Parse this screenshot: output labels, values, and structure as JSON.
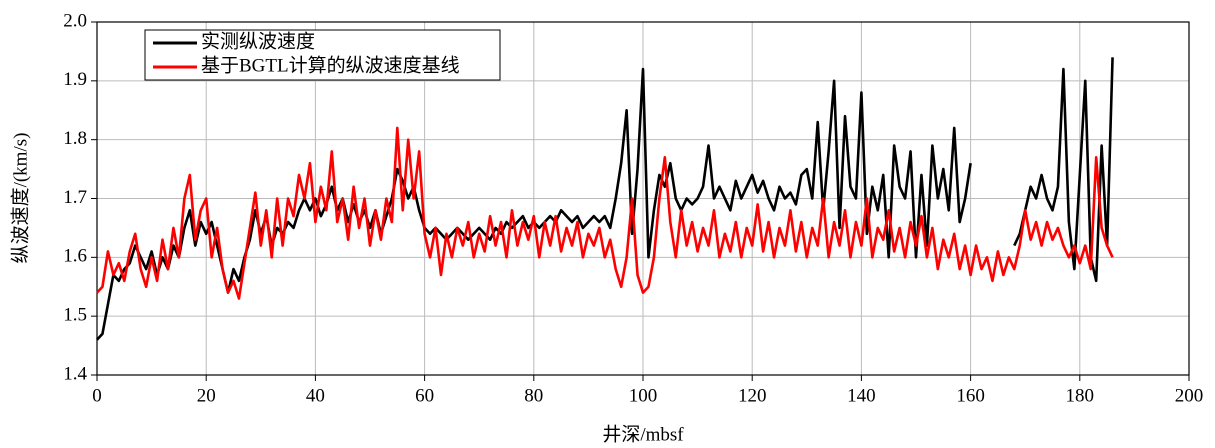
{
  "chart_data": {
    "type": "line",
    "xlabel": "井深/mbsf",
    "ylabel": "纵波速度/(km/s)",
    "xlim": [
      0,
      200
    ],
    "ylim": [
      1.4,
      2.0
    ],
    "xticks": [
      0,
      20,
      40,
      60,
      80,
      100,
      120,
      140,
      160,
      180,
      200
    ],
    "yticks": [
      1.4,
      1.5,
      1.6,
      1.7,
      1.8,
      1.9,
      {
        "value": 2.0,
        "label": "2.0"
      }
    ],
    "grid": true,
    "legend": "upper left",
    "x": [
      0,
      1,
      2,
      3,
      4,
      5,
      6,
      7,
      8,
      9,
      10,
      11,
      12,
      13,
      14,
      15,
      16,
      17,
      18,
      19,
      20,
      21,
      22,
      23,
      24,
      25,
      26,
      27,
      28,
      29,
      30,
      31,
      32,
      33,
      34,
      35,
      36,
      37,
      38,
      39,
      40,
      41,
      42,
      43,
      44,
      45,
      46,
      47,
      48,
      49,
      50,
      51,
      52,
      53,
      54,
      55,
      56,
      57,
      58,
      59,
      60,
      61,
      62,
      63,
      64,
      65,
      66,
      67,
      68,
      69,
      70,
      71,
      72,
      73,
      74,
      75,
      76,
      77,
      78,
      79,
      80,
      81,
      82,
      83,
      84,
      85,
      86,
      87,
      88,
      89,
      90,
      91,
      92,
      93,
      94,
      95,
      96,
      97,
      98,
      99,
      100,
      101,
      102,
      103,
      104,
      105,
      106,
      107,
      108,
      109,
      110,
      111,
      112,
      113,
      114,
      115,
      116,
      117,
      118,
      119,
      120,
      121,
      122,
      123,
      124,
      125,
      126,
      127,
      128,
      129,
      130,
      131,
      132,
      133,
      134,
      135,
      136,
      137,
      138,
      139,
      140,
      141,
      142,
      143,
      144,
      145,
      146,
      147,
      148,
      149,
      150,
      151,
      152,
      153,
      154,
      155,
      156,
      157,
      158,
      159,
      160,
      161,
      162,
      163,
      164,
      165,
      166,
      167,
      168,
      169,
      170,
      171,
      172,
      173,
      174,
      175,
      176,
      177,
      178,
      179,
      180,
      181,
      182,
      183,
      184,
      185,
      186
    ],
    "series": [
      {
        "name": "实测纵波速度",
        "color": "#000000",
        "values": [
          1.46,
          1.47,
          1.52,
          1.57,
          1.56,
          1.58,
          1.59,
          1.62,
          1.6,
          1.58,
          1.61,
          1.57,
          1.6,
          1.58,
          1.62,
          1.6,
          1.65,
          1.68,
          1.62,
          1.66,
          1.64,
          1.66,
          1.62,
          1.58,
          1.54,
          1.58,
          1.56,
          1.6,
          1.63,
          1.68,
          1.64,
          1.67,
          1.62,
          1.65,
          1.64,
          1.66,
          1.65,
          1.68,
          1.7,
          1.68,
          1.7,
          1.67,
          1.69,
          1.72,
          1.68,
          1.7,
          1.66,
          1.69,
          1.66,
          1.68,
          1.65,
          1.68,
          1.64,
          1.67,
          1.7,
          1.75,
          1.73,
          1.7,
          1.72,
          1.68,
          1.65,
          1.64,
          1.65,
          1.64,
          1.63,
          1.64,
          1.65,
          1.64,
          1.63,
          1.64,
          1.65,
          1.64,
          1.63,
          1.65,
          1.64,
          1.66,
          1.65,
          1.66,
          1.67,
          1.65,
          1.66,
          1.65,
          1.66,
          1.67,
          1.66,
          1.68,
          1.67,
          1.66,
          1.67,
          1.65,
          1.66,
          1.67,
          1.66,
          1.67,
          1.65,
          1.7,
          1.76,
          1.85,
          1.64,
          1.75,
          1.92,
          1.6,
          1.68,
          1.74,
          1.72,
          1.76,
          1.7,
          1.68,
          1.7,
          1.69,
          1.7,
          1.72,
          1.79,
          1.7,
          1.72,
          1.7,
          1.68,
          1.73,
          1.7,
          1.72,
          1.74,
          1.71,
          1.73,
          1.7,
          1.68,
          1.72,
          1.7,
          1.71,
          1.69,
          1.74,
          1.75,
          1.7,
          1.83,
          1.68,
          1.78,
          1.9,
          1.65,
          1.84,
          1.72,
          1.7,
          1.88,
          1.64,
          1.72,
          1.68,
          1.74,
          1.6,
          1.79,
          1.72,
          1.7,
          1.78,
          1.6,
          1.74,
          1.62,
          1.79,
          1.7,
          1.75,
          1.68,
          1.82,
          1.66,
          1.7,
          1.76,
          null,
          null,
          null,
          null,
          null,
          null,
          null,
          1.62,
          1.64,
          1.68,
          1.72,
          1.7,
          1.74,
          1.7,
          1.68,
          1.72,
          1.92,
          1.66,
          1.58,
          1.74,
          1.9,
          1.6,
          1.56,
          1.79,
          1.62,
          1.94
        ]
      },
      {
        "name": "基于BGTL计算的纵波速度基线",
        "color": "#ff0000",
        "values": [
          1.54,
          1.55,
          1.61,
          1.57,
          1.59,
          1.56,
          1.61,
          1.64,
          1.58,
          1.55,
          1.6,
          1.56,
          1.63,
          1.58,
          1.65,
          1.6,
          1.7,
          1.74,
          1.63,
          1.68,
          1.7,
          1.6,
          1.65,
          1.58,
          1.54,
          1.56,
          1.53,
          1.59,
          1.65,
          1.71,
          1.62,
          1.68,
          1.6,
          1.7,
          1.62,
          1.7,
          1.67,
          1.74,
          1.7,
          1.76,
          1.66,
          1.72,
          1.68,
          1.78,
          1.66,
          1.7,
          1.63,
          1.72,
          1.65,
          1.7,
          1.62,
          1.68,
          1.63,
          1.7,
          1.66,
          1.82,
          1.68,
          1.8,
          1.7,
          1.78,
          1.64,
          1.6,
          1.65,
          1.57,
          1.64,
          1.6,
          1.65,
          1.62,
          1.66,
          1.6,
          1.64,
          1.61,
          1.67,
          1.62,
          1.66,
          1.6,
          1.68,
          1.62,
          1.66,
          1.63,
          1.67,
          1.6,
          1.66,
          1.62,
          1.67,
          1.61,
          1.65,
          1.62,
          1.66,
          1.6,
          1.64,
          1.62,
          1.65,
          1.6,
          1.63,
          1.58,
          1.55,
          1.6,
          1.7,
          1.57,
          1.54,
          1.55,
          1.6,
          1.7,
          1.77,
          1.66,
          1.6,
          1.68,
          1.62,
          1.66,
          1.61,
          1.65,
          1.62,
          1.68,
          1.6,
          1.64,
          1.61,
          1.66,
          1.6,
          1.65,
          1.62,
          1.69,
          1.61,
          1.66,
          1.6,
          1.65,
          1.62,
          1.68,
          1.61,
          1.66,
          1.6,
          1.65,
          1.62,
          1.7,
          1.6,
          1.66,
          1.62,
          1.68,
          1.6,
          1.66,
          1.62,
          1.7,
          1.6,
          1.65,
          1.63,
          1.68,
          1.61,
          1.65,
          1.6,
          1.66,
          1.62,
          1.67,
          1.6,
          1.65,
          1.58,
          1.63,
          1.6,
          1.64,
          1.58,
          1.62,
          1.57,
          1.62,
          1.58,
          1.6,
          1.56,
          1.61,
          1.57,
          1.6,
          1.58,
          1.62,
          1.68,
          1.63,
          1.66,
          1.62,
          1.66,
          1.63,
          1.65,
          1.62,
          1.6,
          1.62,
          1.59,
          1.62,
          1.58,
          1.77,
          1.65,
          1.62,
          1.6
        ]
      }
    ]
  }
}
